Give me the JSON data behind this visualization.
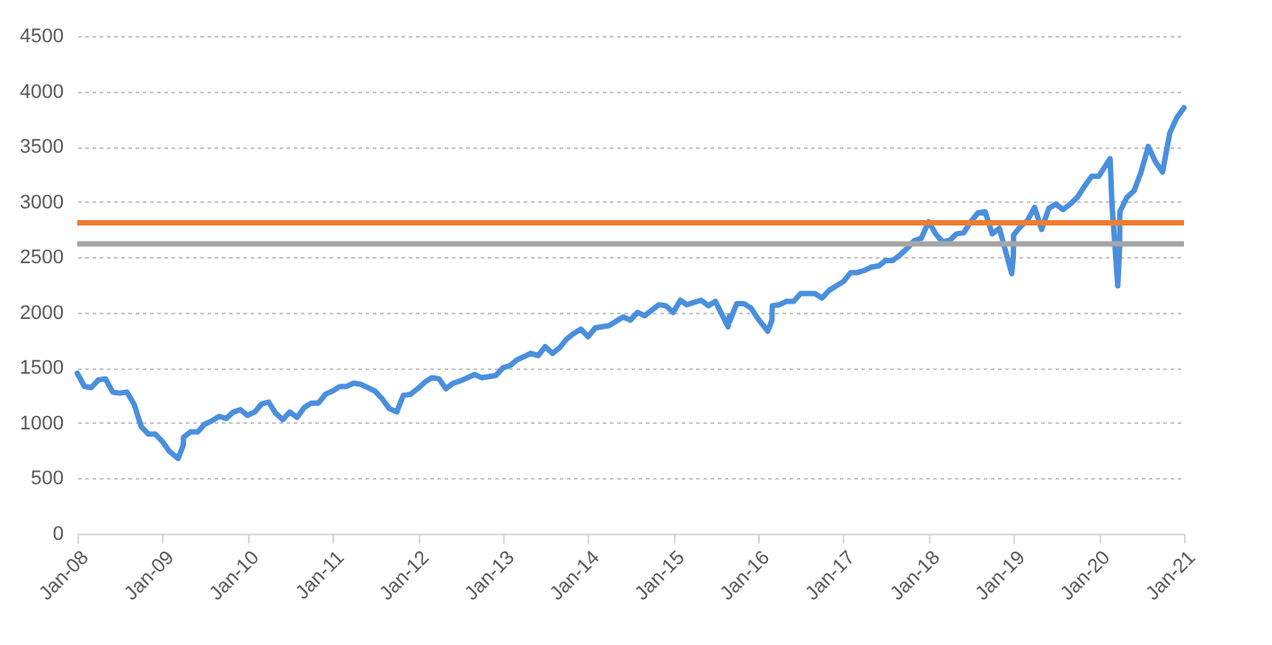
{
  "chart_data": {
    "type": "line",
    "x": [
      "2008-01",
      "2008-02",
      "2008-03",
      "2008-04",
      "2008-05",
      "2008-06",
      "2008-07",
      "2008-08",
      "2008-09",
      "2008-10",
      "2008-11",
      "2008-12",
      "2009-01",
      "2009-02",
      "2009-03-09",
      "2009-03-31",
      "2009-04",
      "2009-05",
      "2009-06",
      "2009-07",
      "2009-08",
      "2009-09",
      "2009-10",
      "2009-11",
      "2009-12",
      "2010-01",
      "2010-02",
      "2010-03",
      "2010-04",
      "2010-05",
      "2010-06",
      "2010-07",
      "2010-08",
      "2010-09",
      "2010-10",
      "2010-11",
      "2010-12",
      "2011-01",
      "2011-02",
      "2011-03",
      "2011-04",
      "2011-05",
      "2011-06",
      "2011-07",
      "2011-08",
      "2011-09",
      "2011-10-03",
      "2011-10-31",
      "2011-11",
      "2011-12",
      "2012-01",
      "2012-02",
      "2012-03",
      "2012-04",
      "2012-05",
      "2012-06",
      "2012-07",
      "2012-08",
      "2012-09",
      "2012-10",
      "2012-11",
      "2012-12",
      "2013-01",
      "2013-02",
      "2013-03",
      "2013-04",
      "2013-05",
      "2013-06",
      "2013-07",
      "2013-08",
      "2013-09",
      "2013-10",
      "2013-11",
      "2013-12",
      "2014-01",
      "2014-02",
      "2014-03",
      "2014-04",
      "2014-05",
      "2014-06",
      "2014-07",
      "2014-08",
      "2014-09",
      "2014-10",
      "2014-11",
      "2014-12",
      "2015-01",
      "2015-02",
      "2015-03",
      "2015-04",
      "2015-05",
      "2015-06",
      "2015-07",
      "2015-08-25",
      "2015-08-31",
      "2015-09",
      "2015-10",
      "2015-11",
      "2015-12",
      "2016-01",
      "2016-02-11",
      "2016-02-29",
      "2016-03",
      "2016-04",
      "2016-05",
      "2016-06",
      "2016-07",
      "2016-08",
      "2016-09",
      "2016-10",
      "2016-11",
      "2016-12",
      "2017-01",
      "2017-02",
      "2017-03",
      "2017-04",
      "2017-05",
      "2017-06",
      "2017-07",
      "2017-08",
      "2017-09",
      "2017-10",
      "2017-11",
      "2017-12",
      "2018-01",
      "2018-02",
      "2018-03",
      "2018-04",
      "2018-05",
      "2018-06",
      "2018-07",
      "2018-08",
      "2018-09",
      "2018-10",
      "2018-11",
      "2018-12-24",
      "2018-12-31",
      "2019-01",
      "2019-02",
      "2019-03",
      "2019-04",
      "2019-05",
      "2019-06",
      "2019-07",
      "2019-08",
      "2019-09",
      "2019-10",
      "2019-11",
      "2019-12",
      "2020-01",
      "2020-02-19",
      "2020-02-28",
      "2020-03-23",
      "2020-03-31",
      "2020-04",
      "2020-05",
      "2020-06",
      "2020-07",
      "2020-08",
      "2020-09",
      "2020-10",
      "2020-11",
      "2020-12",
      "2021-01"
    ],
    "series": [
      {
        "color": "#4a8fde",
        "values": [
          1450,
          1330,
          1320,
          1390,
          1400,
          1280,
          1270,
          1280,
          1170,
          970,
          900,
          900,
          830,
          740,
          680,
          800,
          870,
          920,
          920,
          990,
          1020,
          1060,
          1040,
          1100,
          1120,
          1070,
          1100,
          1170,
          1190,
          1090,
          1030,
          1100,
          1050,
          1140,
          1180,
          1180,
          1260,
          1290,
          1330,
          1330,
          1360,
          1350,
          1320,
          1290,
          1220,
          1130,
          1100,
          1250,
          1250,
          1260,
          1310,
          1370,
          1410,
          1400,
          1310,
          1360,
          1380,
          1410,
          1440,
          1410,
          1420,
          1430,
          1500,
          1520,
          1570,
          1600,
          1630,
          1610,
          1690,
          1630,
          1680,
          1760,
          1810,
          1850,
          1780,
          1860,
          1870,
          1880,
          1920,
          1960,
          1930,
          2000,
          1970,
          2020,
          2070,
          2060,
          2000,
          2110,
          2070,
          2090,
          2110,
          2060,
          2100,
          1870,
          1970,
          1920,
          2080,
          2080,
          2040,
          1940,
          1830,
          1930,
          2060,
          2070,
          2100,
          2100,
          2170,
          2170,
          2170,
          2130,
          2200,
          2240,
          2280,
          2360,
          2360,
          2380,
          2410,
          2420,
          2470,
          2470,
          2520,
          2580,
          2650,
          2670,
          2820,
          2710,
          2640,
          2650,
          2710,
          2720,
          2820,
          2900,
          2910,
          2710,
          2760,
          2350,
          2510,
          2700,
          2780,
          2830,
          2950,
          2750,
          2940,
          2980,
          2930,
          2980,
          3040,
          3140,
          3230,
          3230,
          3390,
          2950,
          2240,
          2590,
          2910,
          3040,
          3100,
          3270,
          3500,
          3360,
          3270,
          3620,
          3760,
          3850
        ]
      }
    ],
    "xlim": [
      "2008-01",
      "2021-01"
    ],
    "xticks": [
      {
        "value": "2008-01",
        "label": "Jan-08"
      },
      {
        "value": "2009-01",
        "label": "Jan-09"
      },
      {
        "value": "2010-01",
        "label": "Jan-10"
      },
      {
        "value": "2011-01",
        "label": "Jan-11"
      },
      {
        "value": "2012-01",
        "label": "Jan-12"
      },
      {
        "value": "2013-01",
        "label": "Jan-13"
      },
      {
        "value": "2014-01",
        "label": "Jan-14"
      },
      {
        "value": "2015-01",
        "label": "Jan-15"
      },
      {
        "value": "2016-01",
        "label": "Jan-16"
      },
      {
        "value": "2017-01",
        "label": "Jan-17"
      },
      {
        "value": "2018-01",
        "label": "Jan-18"
      },
      {
        "value": "2019-01",
        "label": "Jan-19"
      },
      {
        "value": "2020-01",
        "label": "Jan-20"
      },
      {
        "value": "2021-01",
        "label": "Jan-21"
      }
    ],
    "ylim": [
      0,
      4500
    ],
    "yticks": [
      0,
      500,
      1000,
      1500,
      2000,
      2500,
      3000,
      3500,
      4000,
      4500
    ],
    "ref_lines": [
      {
        "axis": "y",
        "value": 2810,
        "color": "#ed7d31"
      },
      {
        "axis": "y",
        "value": 2620,
        "color": "#a5a5a5"
      }
    ],
    "grid": "y",
    "line_style": "solid"
  }
}
